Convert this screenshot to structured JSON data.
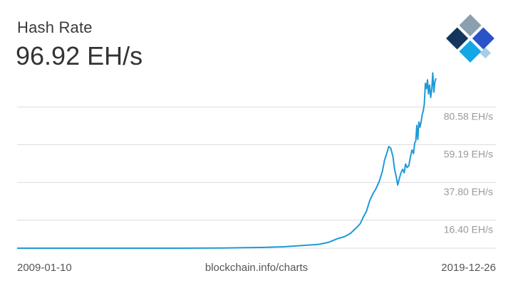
{
  "header": {
    "title": "Hash Rate",
    "current_value": "96.92 EH/s"
  },
  "footer": {
    "start_date": "2009-01-10",
    "source": "blockchain.info/charts",
    "end_date": "2019-12-26"
  },
  "colors": {
    "line": "#1e9bd7",
    "grid": "#dddddd",
    "tick_text": "#999999",
    "logo_dark": "#14365e",
    "logo_blue": "#2a52c9",
    "logo_light": "#12a7e6",
    "logo_pale": "#a7cde6",
    "logo_gray": "#8aa0b0"
  },
  "icons": {
    "brand": "blockchain-logo-icon"
  },
  "chart_data": {
    "type": "line",
    "title": "Hash Rate",
    "xlabel": "",
    "ylabel": "",
    "unit": "EH/s",
    "xlim": [
      "2009-01-10",
      "2019-12-26"
    ],
    "ylim": [
      0,
      101
    ],
    "yticks": [
      16.4,
      37.8,
      59.19,
      80.58
    ],
    "ytick_labels": [
      "16.40 EH/s",
      "37.80 EH/s",
      "59.19 EH/s",
      "80.58 EH/s"
    ],
    "grid": true,
    "legend": "none",
    "series": [
      {
        "x": [
          "2009-01-10",
          "2011-01-01",
          "2013-01-01",
          "2014-06-01",
          "2015-01-01",
          "2015-06-01",
          "2016-01-01",
          "2016-06-01",
          "2016-12-01",
          "2017-03-01",
          "2017-06-01",
          "2017-08-01",
          "2017-10-01",
          "2017-12-01",
          "2018-01-01",
          "2018-02-01",
          "2018-03-01",
          "2018-04-01",
          "2018-05-01",
          "2018-06-01",
          "2018-07-01",
          "2018-08-01",
          "2018-08-20",
          "2018-09-10",
          "2018-10-01",
          "2018-10-20",
          "2018-11-10",
          "2018-11-25",
          "2018-12-10",
          "2018-12-25",
          "2019-01-10",
          "2019-01-25",
          "2019-02-10",
          "2019-02-25",
          "2019-03-10",
          "2019-03-25",
          "2019-04-10",
          "2019-04-25",
          "2019-05-10",
          "2019-05-25",
          "2019-06-05",
          "2019-06-15",
          "2019-06-25",
          "2019-07-05",
          "2019-07-15",
          "2019-07-25",
          "2019-08-05",
          "2019-08-15",
          "2019-08-25",
          "2019-09-05",
          "2019-09-15",
          "2019-09-25",
          "2019-10-05",
          "2019-10-15",
          "2019-10-25",
          "2019-11-05",
          "2019-11-15",
          "2019-11-25",
          "2019-12-05",
          "2019-12-15",
          "2019-12-26"
        ],
        "y": [
          0,
          0,
          0,
          0.1,
          0.3,
          0.4,
          0.8,
          1.4,
          2.2,
          3.3,
          5.5,
          6.5,
          8.5,
          12,
          14,
          18,
          21,
          27,
          31,
          34,
          38,
          44,
          50,
          54,
          58,
          57,
          52,
          45,
          41,
          36,
          40,
          43,
          45,
          43,
          48,
          46,
          47,
          52,
          56,
          54,
          60,
          61,
          70,
          62,
          72,
          69,
          72,
          76,
          78,
          82,
          94,
          91,
          96,
          88,
          93,
          86,
          91,
          100,
          89,
          95,
          96.92
        ]
      }
    ]
  }
}
